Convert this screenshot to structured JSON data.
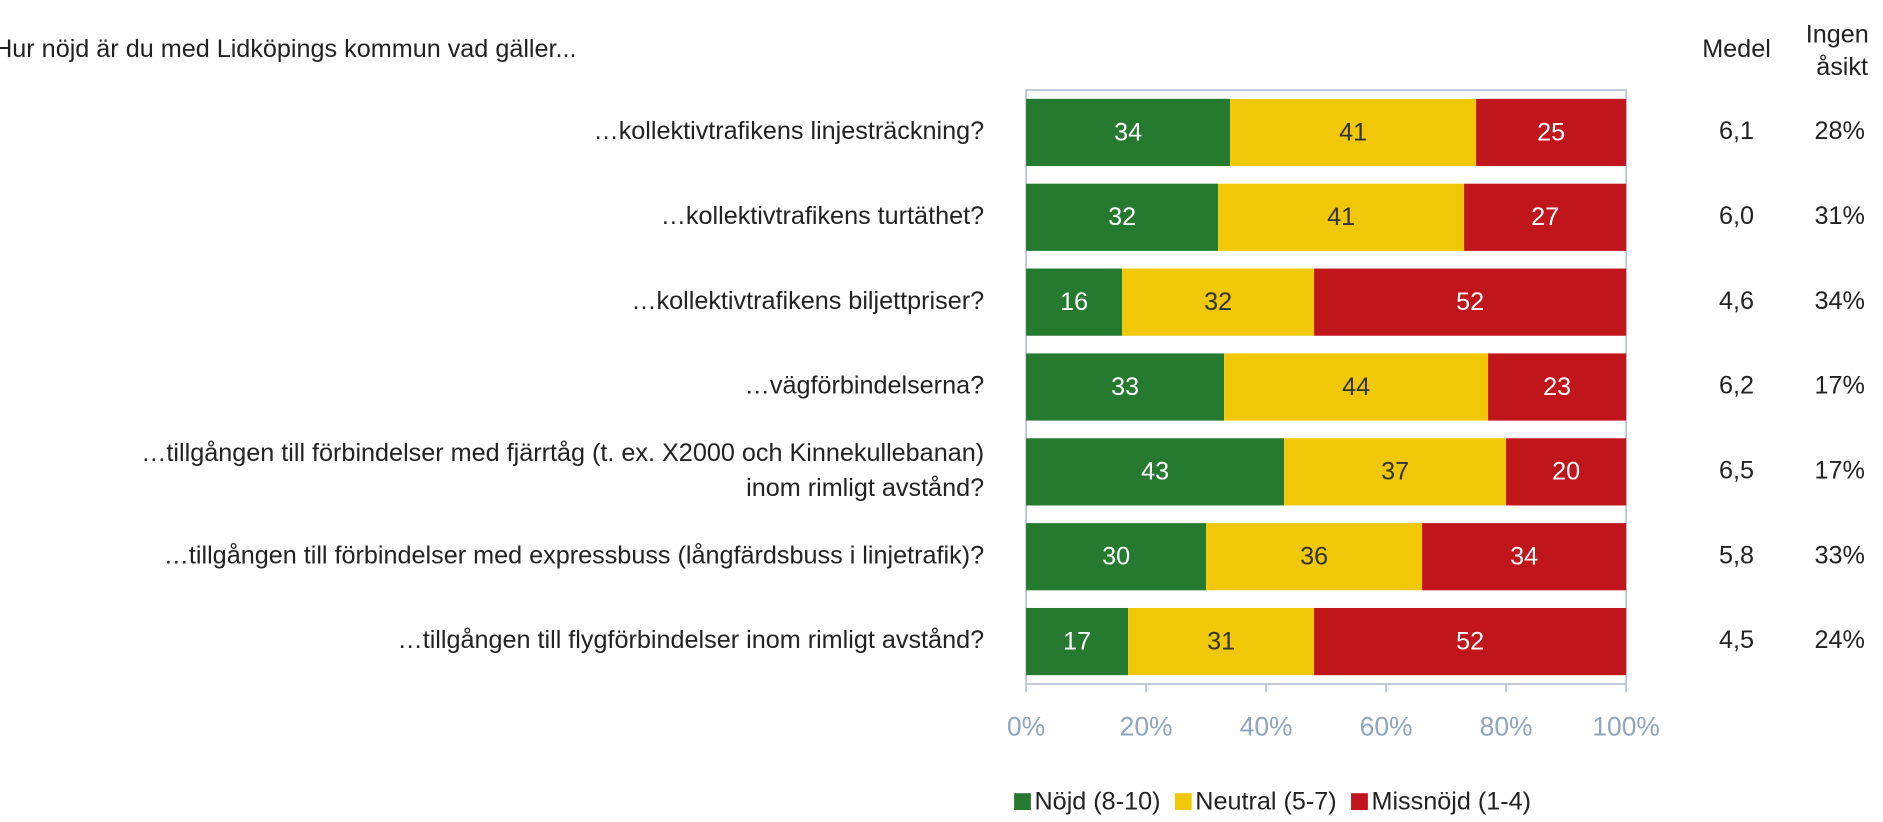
{
  "chart_data": {
    "type": "stacked_barh",
    "title": "Hur nöjd är du med Lidköpings kommun vad gäller...",
    "categories": [
      "…kollektivtrafikens linjesträckning?",
      "…kollektivtrafikens turtäthet?",
      "…kollektivtrafikens biljettpriser?",
      "…vägförbindelserna?",
      [
        "…tillgången till förbindelser med fjärrtåg (t. ex. X2000 och Kinnekullebanan)",
        "inom rimligt avstånd?"
      ],
      "…tillgången till förbindelser med expressbuss (långfärdsbuss i linjetrafik)?",
      "…tillgången till flygförbindelser inom rimligt avstånd?"
    ],
    "series": [
      {
        "name": "Nöjd (8-10)",
        "color": "#267a30",
        "values": [
          34,
          32,
          16,
          33,
          43,
          30,
          17
        ]
      },
      {
        "name": "Neutral (5-7)",
        "color": "#f0c808",
        "values": [
          41,
          41,
          32,
          44,
          37,
          36,
          31
        ]
      },
      {
        "name": "Missnöjd (1-4)",
        "color": "#c0151a",
        "values": [
          25,
          27,
          52,
          23,
          20,
          34,
          52
        ]
      }
    ],
    "xlim": [
      0,
      100
    ],
    "xticks": [
      {
        "value": 0,
        "label": "0%"
      },
      {
        "value": 20,
        "label": "20%"
      },
      {
        "value": 40,
        "label": "40%"
      },
      {
        "value": 60,
        "label": "60%"
      },
      {
        "value": 80,
        "label": "80%"
      },
      {
        "value": 100,
        "label": "100%"
      }
    ],
    "mean": {
      "label": "Medel",
      "values": [
        6.1,
        6.0,
        4.6,
        6.2,
        6.5,
        5.8,
        4.5
      ],
      "value_labels": [
        "6,1",
        "6,0",
        "4,6",
        "6,2",
        "6,5",
        "5,8",
        "4,5"
      ]
    },
    "no_opinion": {
      "label": [
        "Ingen",
        "åsikt"
      ],
      "values": [
        28,
        31,
        34,
        17,
        17,
        33,
        24
      ],
      "value_labels": [
        "28%",
        "31%",
        "34%",
        "17%",
        "17%",
        "33%",
        "24%"
      ]
    },
    "legend": "bottom"
  }
}
